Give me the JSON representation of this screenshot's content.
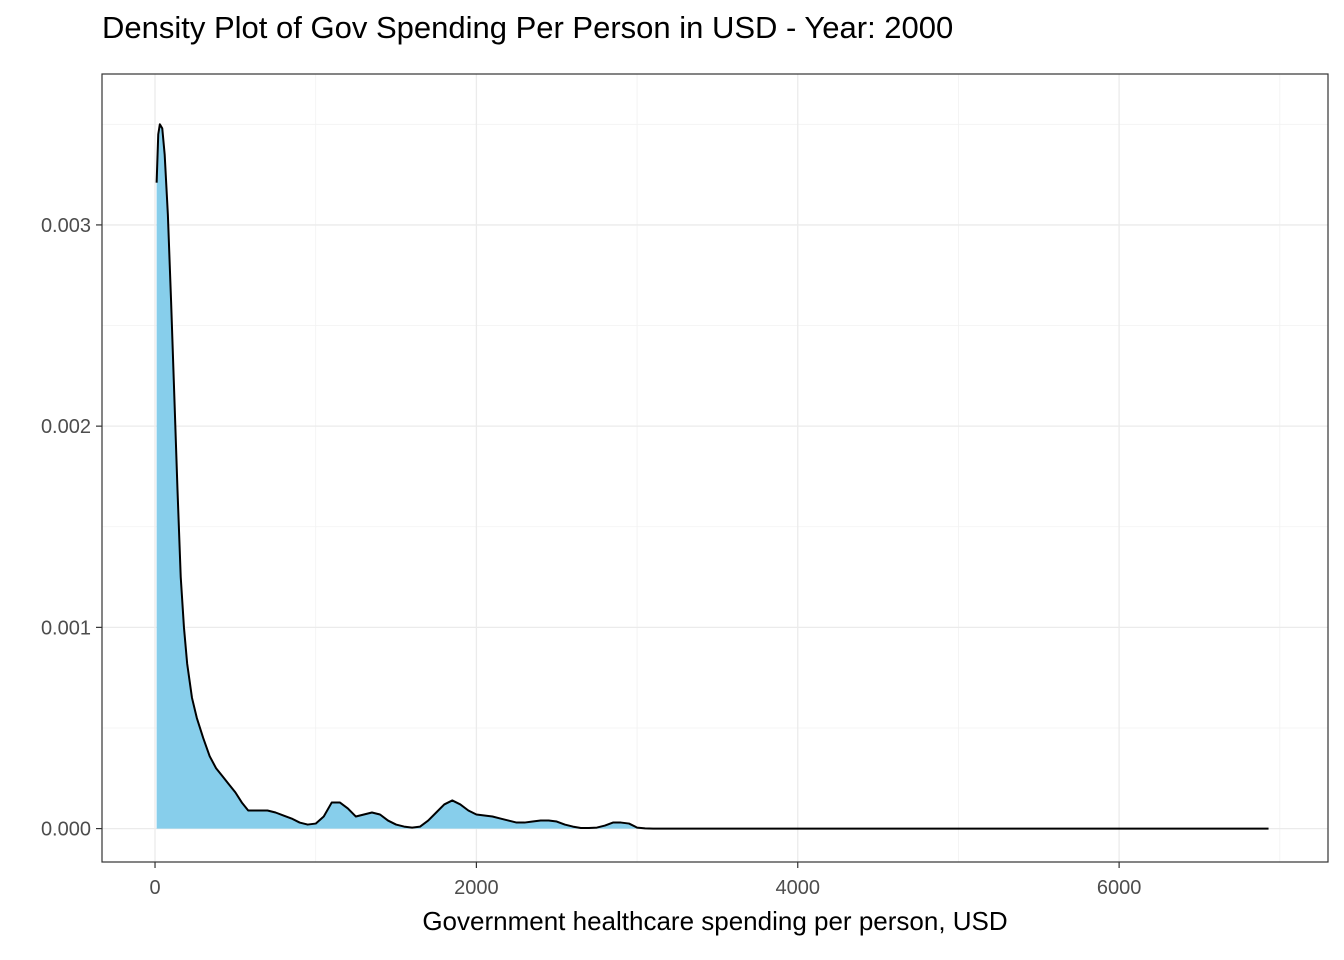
{
  "chart_data": {
    "type": "area",
    "title": "Density Plot of Gov Spending Per Person in USD - Year: 2000",
    "xlabel": "Government healthcare spending per person, USD",
    "ylabel": "",
    "xlim": [
      -330,
      7300
    ],
    "ylim": [
      -0.000166,
      0.00375
    ],
    "x_ticks": [
      0,
      2000,
      4000,
      6000
    ],
    "x_tick_labels": [
      "0",
      "2000",
      "4000",
      "6000"
    ],
    "y_ticks": [
      0,
      0.001,
      0.002,
      0.003
    ],
    "y_tick_labels": [
      "0.000",
      "0.001",
      "0.002",
      "0.003"
    ],
    "grid": true,
    "fill_color": "#87ceeb",
    "line_color": "#000000",
    "series": [
      {
        "x": [
          10,
          20,
          30,
          45,
          60,
          80,
          100,
          120,
          140,
          160,
          180,
          200,
          230,
          260,
          300,
          340,
          380,
          420,
          460,
          500,
          540,
          580,
          620,
          660,
          700,
          750,
          800,
          850,
          900,
          950,
          1000,
          1050,
          1100,
          1150,
          1200,
          1250,
          1300,
          1350,
          1400,
          1450,
          1500,
          1550,
          1600,
          1650,
          1700,
          1750,
          1800,
          1850,
          1900,
          1950,
          2000,
          2050,
          2100,
          2150,
          2200,
          2250,
          2300,
          2350,
          2400,
          2450,
          2500,
          2550,
          2600,
          2650,
          2700,
          2750,
          2800,
          2850,
          2900,
          2950,
          3000,
          3050,
          3100,
          3200,
          4000,
          5000,
          6000,
          6930
        ],
        "y": [
          0.00321,
          0.00345,
          0.0035,
          0.00348,
          0.00335,
          0.00305,
          0.00262,
          0.00215,
          0.00168,
          0.00125,
          0.001,
          0.00082,
          0.00065,
          0.00055,
          0.00045,
          0.00036,
          0.0003,
          0.00026,
          0.00022,
          0.00018,
          0.00013,
          9e-05,
          9e-05,
          9e-05,
          9e-05,
          8e-05,
          6.5e-05,
          5e-05,
          3e-05,
          2e-05,
          2.5e-05,
          6e-05,
          0.00013,
          0.00013,
          0.0001,
          6e-05,
          7e-05,
          8e-05,
          7e-05,
          4e-05,
          2e-05,
          1e-05,
          5e-06,
          1e-05,
          4e-05,
          8e-05,
          0.00012,
          0.00014,
          0.00012,
          9e-05,
          7e-05,
          6.5e-05,
          6e-05,
          5e-05,
          4e-05,
          3e-05,
          3e-05,
          3.5e-05,
          4e-05,
          4e-05,
          3.5e-05,
          2e-05,
          1e-05,
          3e-06,
          3e-06,
          5e-06,
          1.5e-05,
          3e-05,
          3e-05,
          2.5e-05,
          5e-06,
          1e-06,
          0,
          0,
          0,
          0,
          0,
          0
        ]
      }
    ]
  }
}
